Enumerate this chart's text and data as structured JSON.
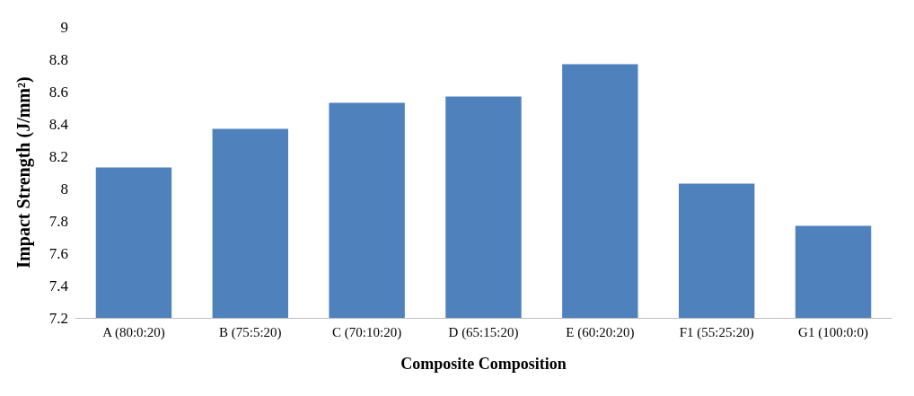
{
  "chart_data": {
    "type": "bar",
    "xlabel": "Composite Composition",
    "ylabel": "Impact Strength (J/mm²)",
    "categories": [
      "A (80:0:20)",
      "B (75:5:20)",
      "C (70:10:20)",
      "D (65:15:20)",
      "E (60:20:20)",
      "F1 (55:25:20)",
      "G1 (100:0:0)"
    ],
    "values": [
      8.13,
      8.37,
      8.53,
      8.57,
      8.77,
      8.03,
      7.77
    ],
    "color": "#4f81bd",
    "ylim": [
      7.2,
      9
    ],
    "yticks": [
      7.2,
      7.4,
      7.6,
      7.8,
      8,
      8.2,
      8.4,
      8.6,
      8.8,
      9
    ],
    "grid": false
  }
}
